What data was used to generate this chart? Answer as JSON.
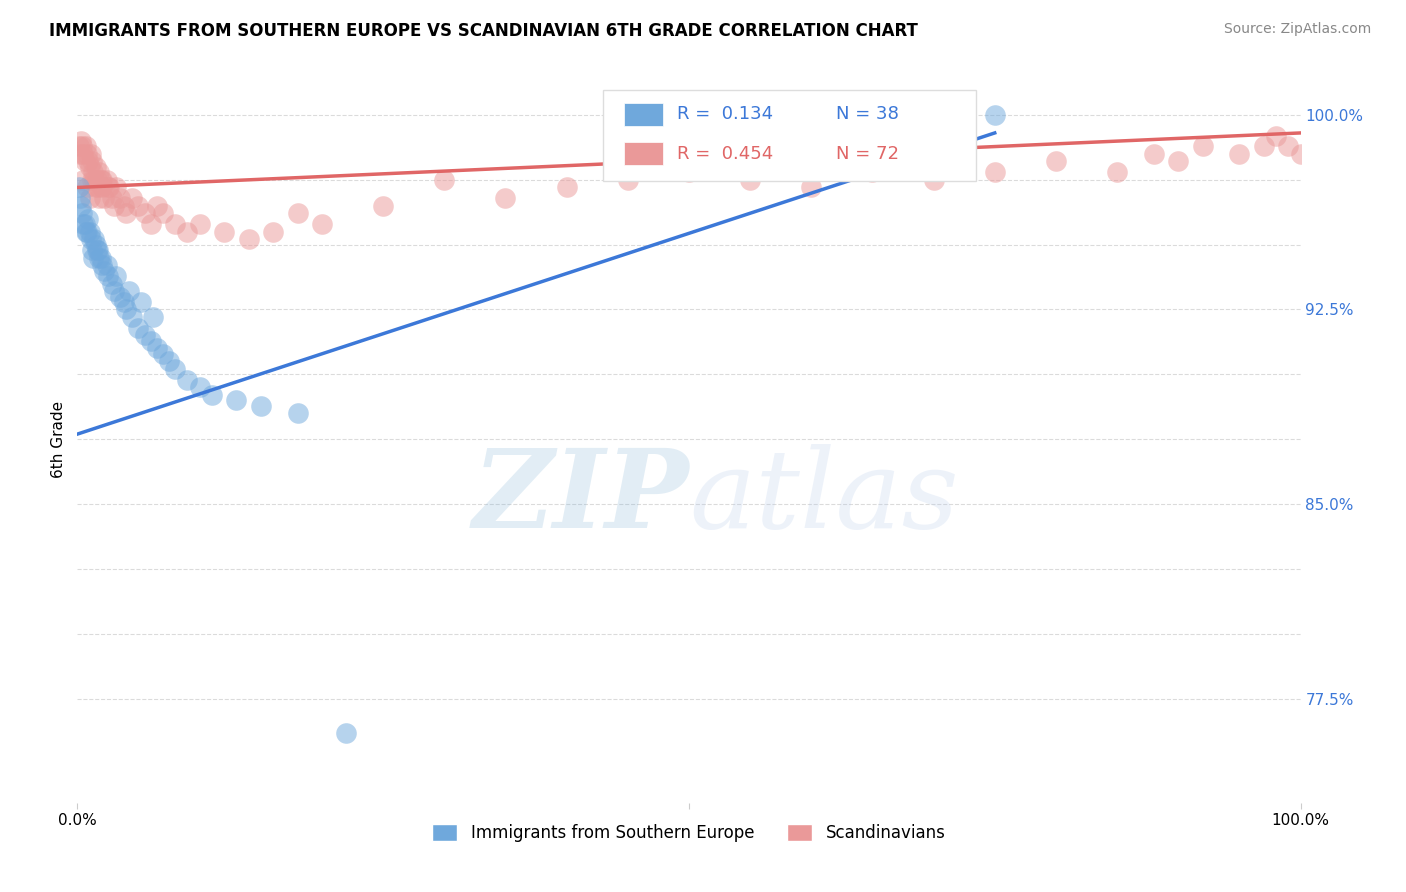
{
  "title": "IMMIGRANTS FROM SOUTHERN EUROPE VS SCANDINAVIAN 6TH GRADE CORRELATION CHART",
  "source_text": "Source: ZipAtlas.com",
  "ylabel": "6th Grade",
  "xlim": [
    0.0,
    1.0
  ],
  "ylim": [
    0.735,
    1.015
  ],
  "ytick_vals": [
    0.775,
    0.8,
    0.825,
    0.85,
    0.875,
    0.9,
    0.925,
    0.95,
    0.975,
    1.0
  ],
  "ytick_labels": [
    "77.5%",
    "",
    "",
    "85.0%",
    "",
    "",
    "92.5%",
    "",
    "",
    "100.0%"
  ],
  "blue_color": "#6fa8dc",
  "pink_color": "#ea9999",
  "blue_line_color": "#3c78d8",
  "pink_line_color": "#e06666",
  "blue_line_x": [
    0.0,
    0.75
  ],
  "blue_line_y": [
    0.877,
    0.993
  ],
  "pink_line_x": [
    0.0,
    1.0
  ],
  "pink_line_y": [
    0.972,
    0.993
  ],
  "blue_x": [
    0.005,
    0.007,
    0.009,
    0.01,
    0.011,
    0.012,
    0.013,
    0.015,
    0.016,
    0.018,
    0.02,
    0.022,
    0.025,
    0.028,
    0.03,
    0.035,
    0.038,
    0.04,
    0.045,
    0.05,
    0.055,
    0.06,
    0.065,
    0.07,
    0.075,
    0.08,
    0.09,
    0.1,
    0.11,
    0.13,
    0.15,
    0.18,
    0.22,
    0.75
  ],
  "blue_y": [
    0.958,
    0.955,
    0.96,
    0.955,
    0.952,
    0.948,
    0.945,
    0.95,
    0.948,
    0.945,
    0.942,
    0.94,
    0.938,
    0.935,
    0.932,
    0.93,
    0.928,
    0.925,
    0.922,
    0.918,
    0.915,
    0.913,
    0.91,
    0.908,
    0.905,
    0.902,
    0.898,
    0.895,
    0.892,
    0.89,
    0.888,
    0.885,
    0.762,
    1.0
  ],
  "blue_x2": [
    0.001,
    0.002,
    0.003,
    0.004,
    0.006,
    0.008,
    0.014,
    0.017,
    0.019,
    0.024,
    0.032,
    0.042,
    0.052,
    0.062
  ],
  "blue_y2": [
    0.972,
    0.968,
    0.965,
    0.962,
    0.958,
    0.955,
    0.952,
    0.948,
    0.945,
    0.942,
    0.938,
    0.932,
    0.928,
    0.922
  ],
  "pink_x": [
    0.001,
    0.002,
    0.003,
    0.004,
    0.005,
    0.006,
    0.007,
    0.008,
    0.009,
    0.01,
    0.011,
    0.012,
    0.013,
    0.014,
    0.015,
    0.016,
    0.017,
    0.018,
    0.019,
    0.02,
    0.022,
    0.024,
    0.026,
    0.028,
    0.03,
    0.032,
    0.035,
    0.038,
    0.04,
    0.045,
    0.05,
    0.055,
    0.06,
    0.065,
    0.07,
    0.08,
    0.09,
    0.1,
    0.12,
    0.14,
    0.16,
    0.18,
    0.2,
    0.25,
    0.3,
    0.35,
    0.4,
    0.45,
    0.5,
    0.55,
    0.6,
    0.65,
    0.7,
    0.75,
    0.8,
    0.85,
    0.88,
    0.9,
    0.92,
    0.95,
    0.97,
    0.98,
    0.99,
    1.0
  ],
  "pink_y": [
    0.988,
    0.985,
    0.99,
    0.988,
    0.985,
    0.982,
    0.988,
    0.985,
    0.982,
    0.98,
    0.985,
    0.982,
    0.978,
    0.975,
    0.98,
    0.975,
    0.972,
    0.978,
    0.975,
    0.972,
    0.968,
    0.975,
    0.972,
    0.968,
    0.965,
    0.972,
    0.968,
    0.965,
    0.962,
    0.968,
    0.965,
    0.962,
    0.958,
    0.965,
    0.962,
    0.958,
    0.955,
    0.958,
    0.955,
    0.952,
    0.955,
    0.962,
    0.958,
    0.965,
    0.975,
    0.968,
    0.972,
    0.975,
    0.978,
    0.975,
    0.972,
    0.978,
    0.975,
    0.978,
    0.982,
    0.978,
    0.985,
    0.982,
    0.988,
    0.985,
    0.988,
    0.992,
    0.988,
    0.985
  ],
  "pink_extra_x": [
    0.005,
    0.008,
    0.01,
    0.012,
    0.015,
    0.018,
    0.02,
    0.025
  ],
  "pink_extra_y": [
    0.975,
    0.972,
    0.968,
    0.975,
    0.972,
    0.968,
    0.975,
    0.972
  ]
}
